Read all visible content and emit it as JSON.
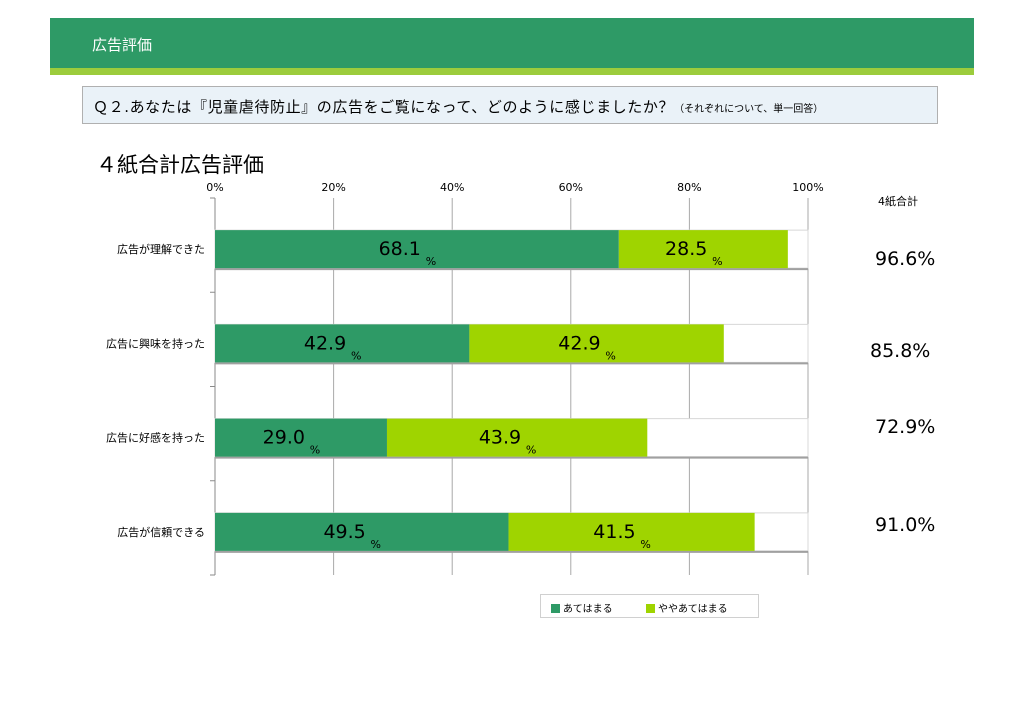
{
  "header": {
    "title": "広告評価"
  },
  "question": {
    "main": "Ｑ２.あなたは『児童虐待防止』の広告をご覧になって、どのように感じましたか？",
    "note": "（それぞれについて、単一回答）"
  },
  "chart_data": {
    "type": "bar",
    "orientation": "horizontal",
    "stacked": true,
    "title": "４紙合計広告評価",
    "categories": [
      "広告が理解できた",
      "広告に興味を持った",
      "広告に好感を持った",
      "広告が信頼できる"
    ],
    "x_ticks": [
      "0%",
      "20%",
      "40%",
      "60%",
      "80%",
      "100%"
    ],
    "xlim": [
      0,
      100
    ],
    "grid": true,
    "value_unit": "%",
    "series": [
      {
        "name": "あてはまる",
        "values": [
          68.1,
          42.9,
          29.0,
          49.5
        ],
        "value_labels": [
          "68.1",
          "42.9",
          "29.0",
          "49.5"
        ],
        "color": "#2e9a66"
      },
      {
        "name": "ややあてはまる",
        "values": [
          28.5,
          42.9,
          43.9,
          41.5
        ],
        "value_labels": [
          "28.5",
          "42.9",
          "43.9",
          "41.5"
        ],
        "color": "#9fd400"
      }
    ],
    "totals_header": "4紙合計",
    "totals": [
      "96.6%",
      "85.8%",
      "72.9%",
      "91.0%"
    ],
    "legend_position": "bottom"
  }
}
